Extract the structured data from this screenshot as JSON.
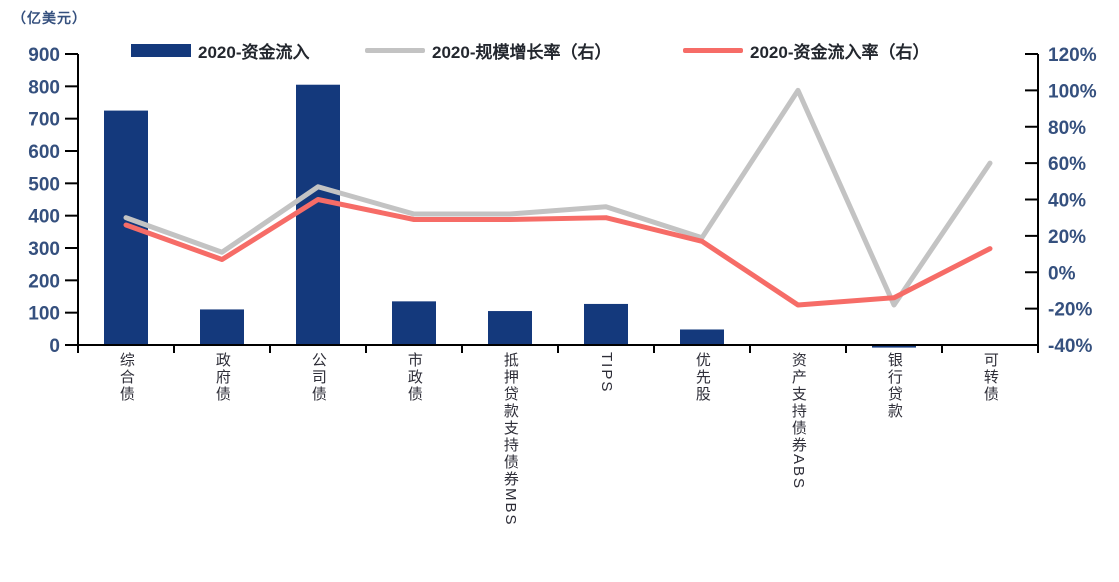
{
  "chart_data": {
    "type": "bar+line",
    "title": "",
    "unit_label": "（亿美元）",
    "grid": false,
    "legend_position": "top",
    "categories": [
      "综合债",
      "政府债",
      "公司债",
      "市政债",
      "抵押贷款支持债券MBS",
      "TIPS",
      "优先股",
      "资产支持债券ABS",
      "银行贷款",
      "可转债"
    ],
    "series": [
      {
        "name": "2020-资金流入",
        "type": "bar",
        "axis": "left",
        "color": "#14397c",
        "values": [
          725,
          110,
          805,
          135,
          105,
          127,
          48,
          3,
          -8,
          3
        ]
      },
      {
        "name": "2020-规模增长率（右）",
        "type": "line",
        "axis": "right",
        "color": "#c3c3c3",
        "values": [
          30,
          11,
          47,
          32,
          32,
          36,
          19,
          100,
          -18,
          60
        ]
      },
      {
        "name": "2020-资金流入率（右）",
        "type": "line",
        "axis": "right",
        "color": "#f66c67",
        "values": [
          26,
          7,
          40,
          29,
          29,
          30,
          17,
          -18,
          -14,
          13
        ]
      }
    ],
    "left_axis": {
      "min": 0,
      "max": 900,
      "step": 100,
      "tick_labels": [
        "900",
        "800",
        "700",
        "600",
        "500",
        "400",
        "300",
        "200",
        "100",
        "0"
      ]
    },
    "right_axis": {
      "min": -40,
      "max": 120,
      "step": 20,
      "tick_labels": [
        "120%",
        "100%",
        "80%",
        "60%",
        "40%",
        "20%",
        "0%",
        "-20%",
        "-40%"
      ]
    }
  },
  "colors": {
    "axis": "#000000",
    "tick_label": "#35507e",
    "legend_text": "#23272e",
    "category_label": "#2e2e38",
    "background": "#ffffff"
  }
}
